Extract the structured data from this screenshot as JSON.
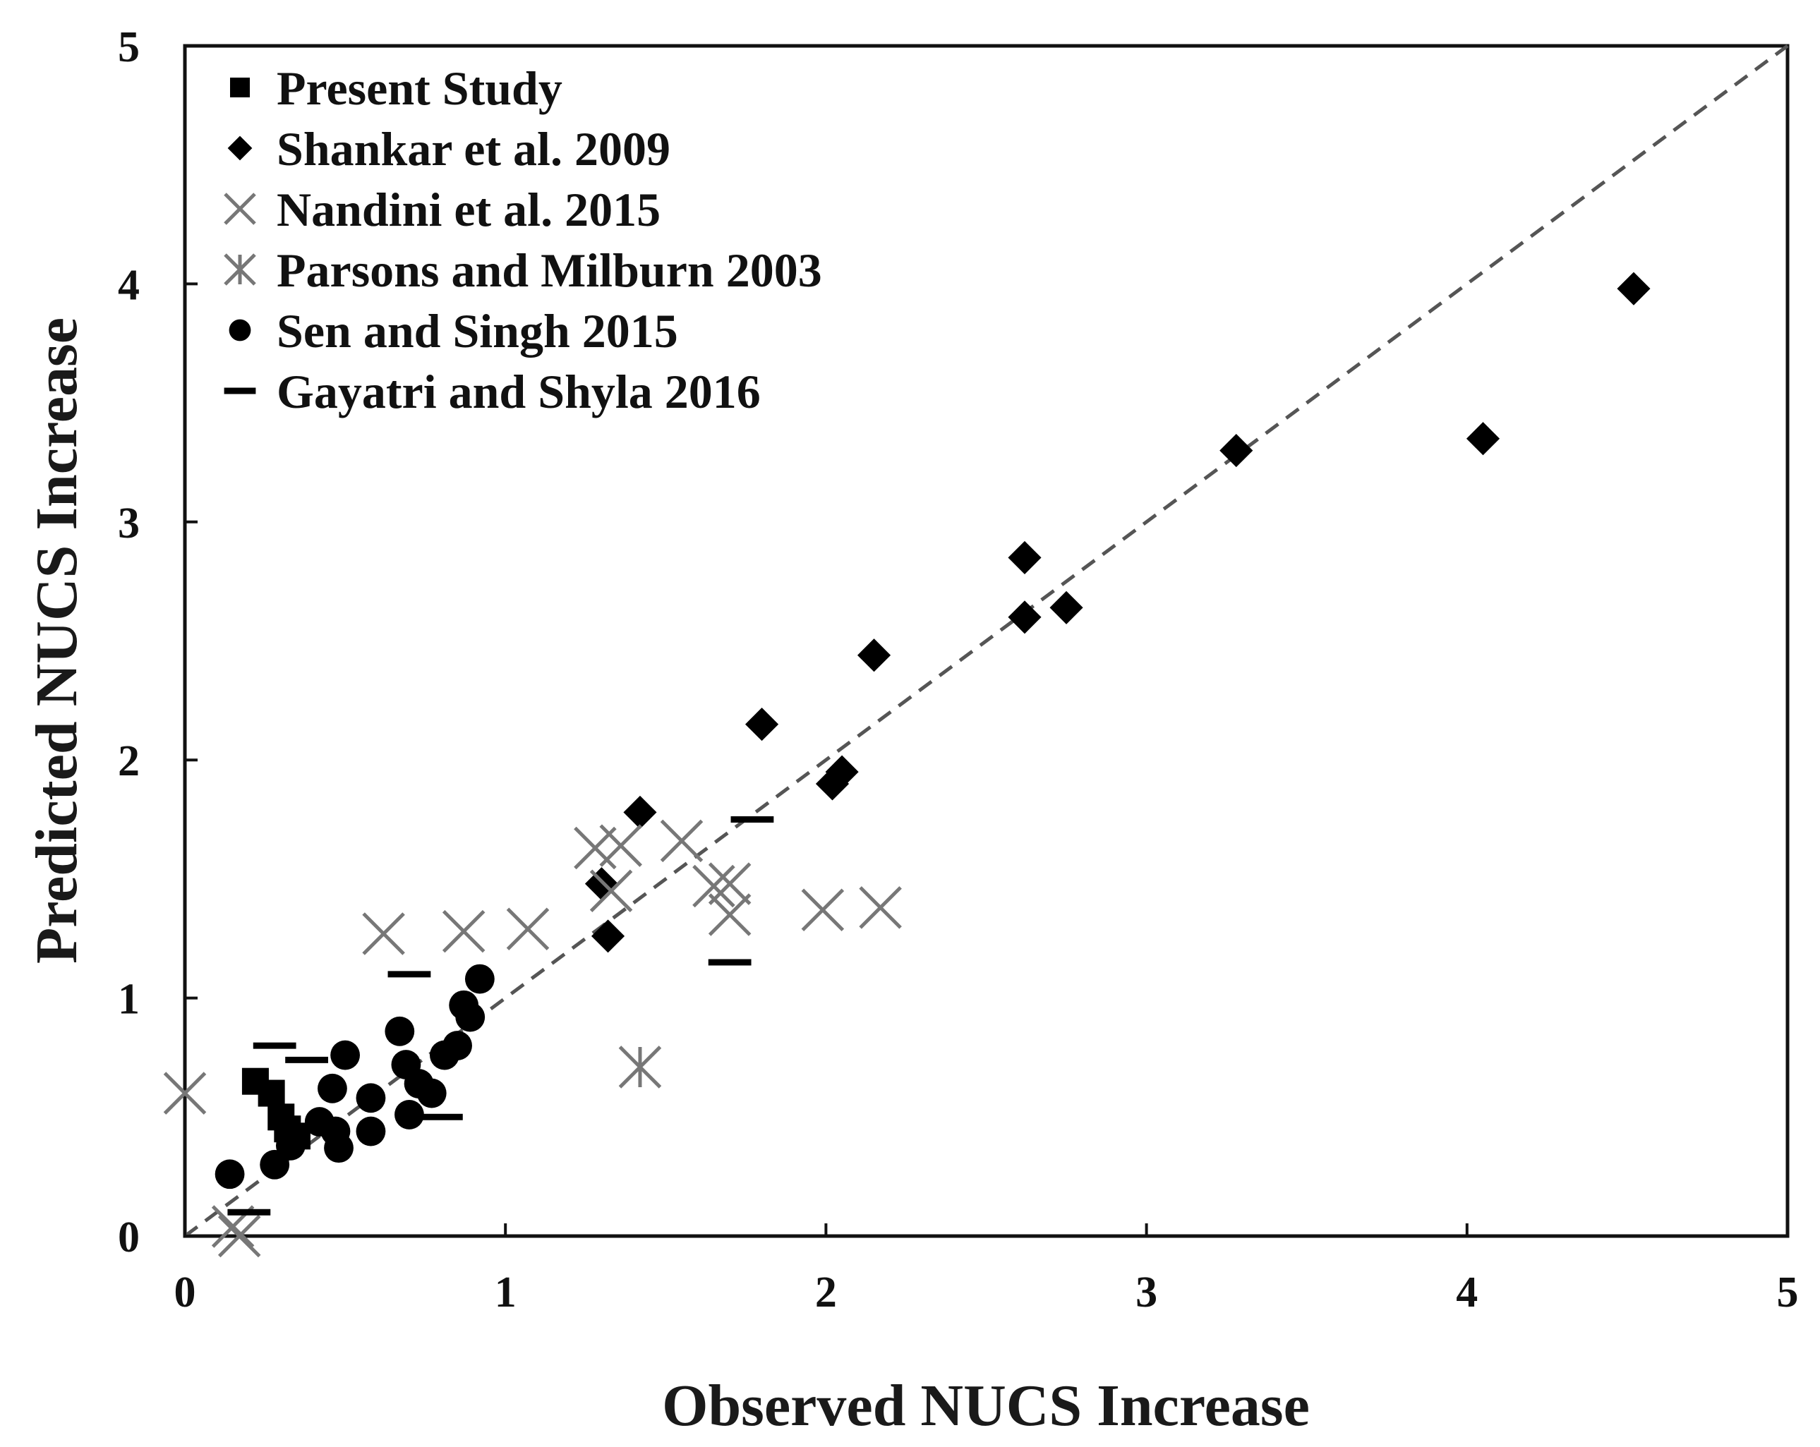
{
  "chart_data": {
    "type": "scatter",
    "title": "",
    "xlabel": "Observed NUCS Increase",
    "ylabel": "Predicted NUCS Increase",
    "xlim": [
      0,
      5
    ],
    "ylim": [
      0,
      5
    ],
    "xticks": [
      0,
      1,
      2,
      3,
      4,
      5
    ],
    "yticks": [
      0,
      1,
      2,
      3,
      4,
      5
    ],
    "xtick_labels": [
      "0",
      "1",
      "2",
      "3",
      "4",
      "5"
    ],
    "ytick_labels": [
      "0",
      "1",
      "2",
      "3",
      "4",
      "5"
    ],
    "grid": false,
    "legend_position": "top-left",
    "reference_line": {
      "type": "y=x",
      "style": "dashed",
      "color": "#555555"
    },
    "series": [
      {
        "name": "Present Study",
        "marker": "square",
        "color": "#000000",
        "points": [
          [
            0.22,
            0.65
          ],
          [
            0.27,
            0.6
          ],
          [
            0.3,
            0.5
          ],
          [
            0.32,
            0.45
          ],
          [
            0.35,
            0.42
          ]
        ]
      },
      {
        "name": "Shankar et al. 2009",
        "marker": "diamond",
        "color": "#000000",
        "points": [
          [
            1.3,
            1.48
          ],
          [
            1.32,
            1.26
          ],
          [
            1.42,
            1.78
          ],
          [
            1.8,
            2.15
          ],
          [
            2.02,
            1.9
          ],
          [
            2.05,
            1.95
          ],
          [
            2.15,
            2.44
          ],
          [
            2.62,
            2.85
          ],
          [
            2.62,
            2.6
          ],
          [
            2.75,
            2.64
          ],
          [
            3.28,
            3.3
          ],
          [
            4.05,
            3.35
          ],
          [
            4.52,
            3.98
          ]
        ]
      },
      {
        "name": "Nandini et al. 2015",
        "marker": "x",
        "color": "#777777",
        "points": [
          [
            0.0,
            0.6
          ],
          [
            0.15,
            0.04
          ],
          [
            0.17,
            0.0
          ],
          [
            0.62,
            1.27
          ],
          [
            0.87,
            1.28
          ],
          [
            1.07,
            1.29
          ],
          [
            1.28,
            1.63
          ],
          [
            1.33,
            1.45
          ],
          [
            1.36,
            1.64
          ],
          [
            1.55,
            1.66
          ],
          [
            1.65,
            1.47
          ],
          [
            1.7,
            1.48
          ],
          [
            1.7,
            1.35
          ],
          [
            1.99,
            1.37
          ],
          [
            2.17,
            1.38
          ]
        ]
      },
      {
        "name": "Parsons and Milburn 2003",
        "marker": "asterisk",
        "color": "#777777",
        "points": [
          [
            1.42,
            0.71
          ]
        ]
      },
      {
        "name": "Sen and Singh 2015",
        "marker": "circle",
        "color": "#000000",
        "points": [
          [
            0.14,
            0.26
          ],
          [
            0.28,
            0.3
          ],
          [
            0.33,
            0.38
          ],
          [
            0.42,
            0.48
          ],
          [
            0.46,
            0.62
          ],
          [
            0.47,
            0.44
          ],
          [
            0.48,
            0.37
          ],
          [
            0.5,
            0.76
          ],
          [
            0.58,
            0.58
          ],
          [
            0.58,
            0.44
          ],
          [
            0.67,
            0.86
          ],
          [
            0.69,
            0.72
          ],
          [
            0.7,
            0.51
          ],
          [
            0.73,
            0.64
          ],
          [
            0.77,
            0.6
          ],
          [
            0.81,
            0.76
          ],
          [
            0.85,
            0.8
          ],
          [
            0.87,
            0.97
          ],
          [
            0.89,
            0.92
          ],
          [
            0.92,
            1.08
          ]
        ]
      },
      {
        "name": "Gayatri and Shyla 2016",
        "marker": "dash",
        "color": "#000000",
        "points": [
          [
            0.2,
            0.1
          ],
          [
            0.28,
            0.8
          ],
          [
            0.38,
            0.74
          ],
          [
            0.7,
            1.1
          ],
          [
            0.8,
            0.5
          ],
          [
            1.7,
            1.15
          ],
          [
            1.77,
            1.75
          ]
        ]
      }
    ]
  }
}
